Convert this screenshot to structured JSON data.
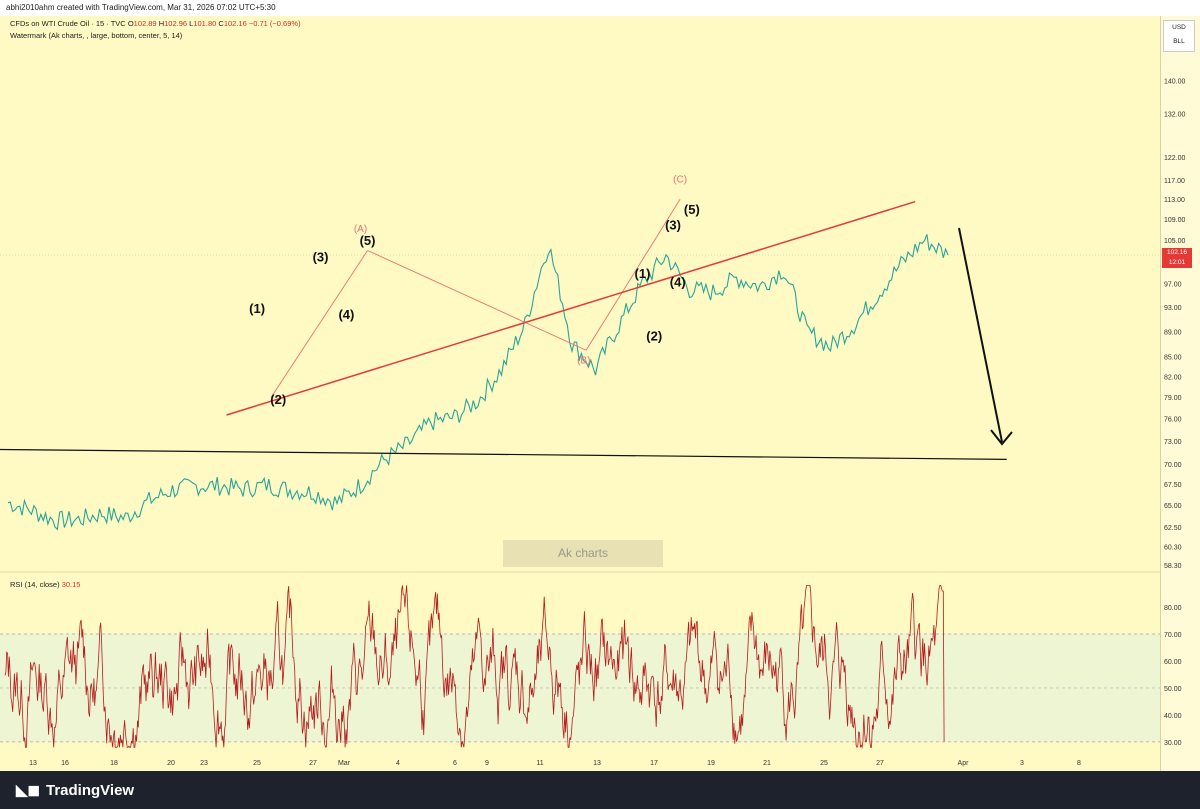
{
  "header": {
    "text": "abhi2010ahm created with TradingView.com, Mar 31, 2026 07:02 UTC+5:30"
  },
  "legend": {
    "symbol": "CFDs on WTI Crude Oil · 15 · TVC",
    "ohlc_prefix_o": "O",
    "o": "102.89",
    "ohlc_prefix_h": "H",
    "h": "102.96",
    "ohlc_prefix_l": "L",
    "l": "101.80",
    "ohlc_prefix_c": "C",
    "c": "102.16",
    "change": "−0.71 (−0.69%)",
    "watermark_line": "Watermark (Ak charts, , large, bottom, center, 5, 14)",
    "rsi_label": "RSI (14, close)",
    "rsi_value": "30.15"
  },
  "currency": {
    "line1": "USD",
    "line2": "BLL"
  },
  "price_tag": {
    "price": "102.16",
    "time": "12:01"
  },
  "watermark_box": "Ak charts",
  "footer": {
    "brand": "TradingView"
  },
  "colors": {
    "background": "#fff9c4",
    "candle": "#26a69a",
    "candle_down": "#ef5350",
    "trendline": "#e53935",
    "rsi": "#b71c1c",
    "rsi_band": "#edf5d3",
    "wave_pink": "#e57373"
  },
  "chart_data": {
    "type": "line",
    "title": "",
    "price_axis": {
      "ticks": [
        "140.00",
        "132.00",
        "122.00",
        "117.00",
        "113.00",
        "109.00",
        "105.00",
        "97.00",
        "93.00",
        "89.00",
        "85.00",
        "82.00",
        "79.00",
        "76.00",
        "73.00",
        "70.00",
        "67.50",
        "65.00",
        "62.50",
        "60.30",
        "58.30"
      ],
      "scale": "log",
      "ylim": [
        57.8,
        148
      ]
    },
    "time_axis": {
      "ticks": [
        "13",
        "16",
        "18",
        "20",
        "23",
        "25",
        "27",
        "Mar",
        "4",
        "6",
        "9",
        "11",
        "13",
        "17",
        "19",
        "21",
        "25",
        "27",
        "Apr",
        "3",
        "8"
      ]
    },
    "price_series": {
      "name": "WTI Crude Oil",
      "x_day_index": [
        0,
        1,
        2,
        3,
        4,
        5,
        6,
        7,
        8,
        9,
        10,
        11,
        12,
        13,
        14,
        15,
        16,
        17,
        18,
        19,
        20,
        21,
        22,
        23,
        24,
        25,
        26,
        27,
        28,
        29,
        30,
        31,
        32,
        33,
        34,
        35,
        36,
        37,
        38,
        39,
        40
      ],
      "close": [
        65.3,
        64.4,
        63.2,
        63.3,
        64.0,
        63.5,
        65.5,
        66.8,
        67.3,
        67.3,
        66.9,
        67.4,
        66.8,
        66.5,
        65.3,
        67.4,
        70.5,
        72.5,
        75.5,
        76.2,
        78.5,
        83.0,
        90.0,
        104.0,
        87.0,
        83.0,
        90.0,
        97.0,
        102.0,
        96.0,
        95.5,
        98.0,
        96.5,
        99.5,
        89.0,
        86.5,
        90.0,
        95.0,
        100.5,
        105.0,
        102.16
      ]
    },
    "trendlines": [
      {
        "name": "support",
        "points": [
          [
            9.3,
            76.5
          ],
          [
            38.6,
            112.5
          ]
        ]
      },
      {
        "name": "horizontal",
        "points": [
          [
            -4.5,
            72.0
          ],
          [
            42.5,
            70.6
          ]
        ]
      }
    ],
    "wave_labels": [
      {
        "text": "(1)",
        "x": 10.6,
        "y": 92.0
      },
      {
        "text": "(2)",
        "x": 11.5,
        "y": 78.0
      },
      {
        "text": "(3)",
        "x": 13.3,
        "y": 101.0
      },
      {
        "text": "(4)",
        "x": 14.4,
        "y": 91.0
      },
      {
        "text": "(5)",
        "x": 15.3,
        "y": 104.0
      },
      {
        "text": "(A)",
        "x": 15.0,
        "y": 106.5
      },
      {
        "text": "(B)",
        "x": 24.5,
        "y": 84.0
      },
      {
        "text": "(1)",
        "x": 27.0,
        "y": 98.0
      },
      {
        "text": "(2)",
        "x": 27.5,
        "y": 87.5
      },
      {
        "text": "(3)",
        "x": 28.3,
        "y": 107.0
      },
      {
        "text": "(4)",
        "x": 28.5,
        "y": 96.5
      },
      {
        "text": "(5)",
        "x": 29.1,
        "y": 110.0
      },
      {
        "text": "(C)",
        "x": 28.6,
        "y": 116.5
      }
    ],
    "rsi": {
      "name": "RSI (14, close)",
      "ticks": [
        "80.00",
        "70.00",
        "60.00",
        "50.00",
        "40.00",
        "30.00"
      ],
      "ylim": [
        27,
        90
      ],
      "band": [
        30,
        70
      ],
      "last": 30.15
    }
  }
}
